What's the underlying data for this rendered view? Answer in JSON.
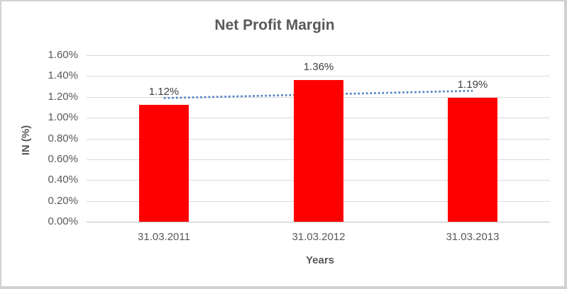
{
  "chart_data": {
    "type": "bar",
    "title": "Net Profit Margin",
    "xlabel": "Years",
    "ylabel": "IN (%)",
    "categories": [
      "31.03.2011",
      "31.03.2012",
      "31.03.2013"
    ],
    "values": [
      1.12,
      1.36,
      1.19
    ],
    "data_labels": [
      "1.12%",
      "1.36%",
      "1.19%"
    ],
    "ylim": [
      0,
      1.6
    ],
    "ytick_step": 0.2,
    "ytick_labels": [
      "0.00%",
      "0.20%",
      "0.40%",
      "0.60%",
      "0.80%",
      "1.00%",
      "1.20%",
      "1.40%",
      "1.60%"
    ],
    "grid": true,
    "legend": false,
    "bar_color": "#FF0000",
    "trendline": {
      "type": "linear",
      "style": "dotted",
      "color": "#4E82C8"
    }
  },
  "colors": {
    "title_text": "#595959",
    "axis_text": "#595959",
    "data_label_text": "#404040",
    "gridline": "#d9d9d9",
    "axis_line": "#bfbfbf",
    "frame_border": "#d1d1d1",
    "background": "#ffffff"
  }
}
